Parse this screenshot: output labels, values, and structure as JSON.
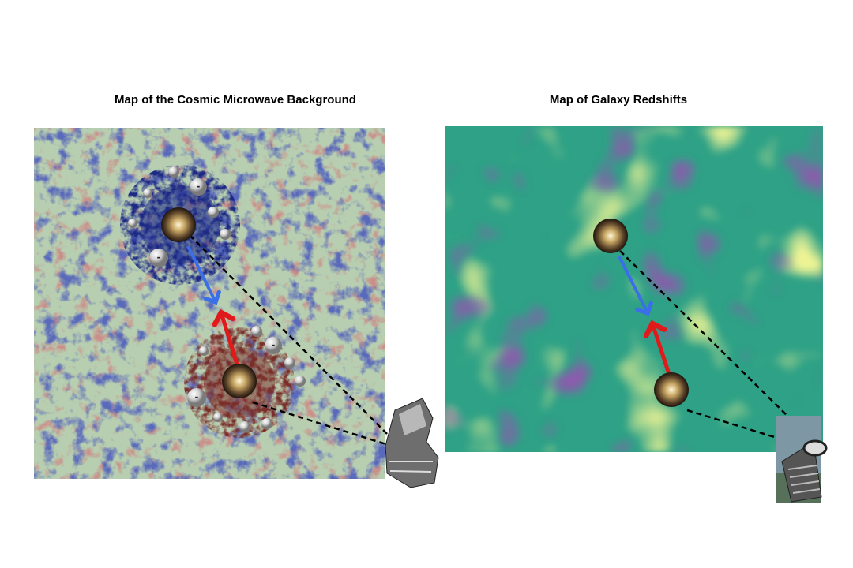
{
  "left_panel": {
    "title": "Map of the Cosmic Microwave Background"
  },
  "right_panel": {
    "title": "Map of Galaxy Redshifts"
  },
  "electron_sign": "-"
}
